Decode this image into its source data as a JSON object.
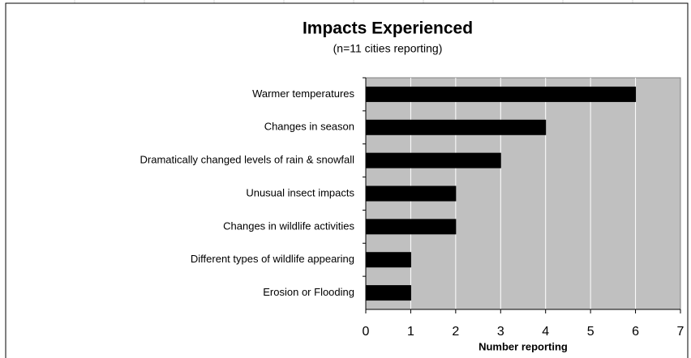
{
  "chart_data": {
    "type": "bar",
    "orientation": "horizontal",
    "title": "Impacts Experienced",
    "subtitle": "(n=11 cities reporting)",
    "x_label": "Number reporting",
    "categories": [
      "Warmer temperatures",
      "Changes in season",
      "Dramatically changed levels of rain & snowfall",
      "Unusual insect impacts",
      "Changes in wildlife activities",
      "Different types of wildlife appearing",
      "Erosion or Flooding"
    ],
    "values": [
      6,
      4,
      3,
      2,
      2,
      1,
      1
    ],
    "color": "#000000",
    "plot_background": "#c0c0c0",
    "xlim": [
      0,
      7
    ],
    "xticks": [
      0,
      1,
      2,
      3,
      4,
      5,
      6,
      7
    ],
    "grid": true
  }
}
